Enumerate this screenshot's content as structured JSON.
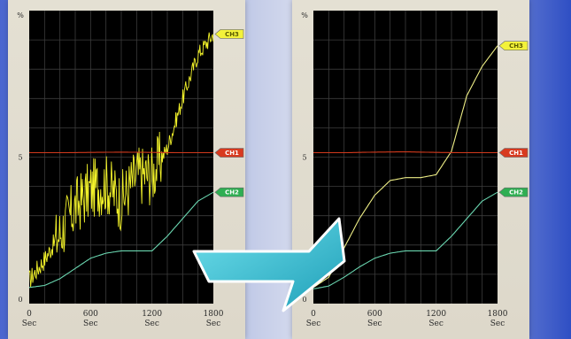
{
  "chart_data": [
    {
      "type": "line",
      "xlim": [
        0,
        1800
      ],
      "ylim": [
        0,
        10
      ],
      "grid": true,
      "x_ticks": [
        {
          "value": 0,
          "line1": "0",
          "line2": "Sec"
        },
        {
          "value": 600,
          "line1": "600",
          "line2": "Sec"
        },
        {
          "value": 1200,
          "line1": "1200",
          "line2": "Sec"
        },
        {
          "value": 1800,
          "line1": "1800",
          "line2": "Sec"
        }
      ],
      "y_ticks": [
        {
          "value": 10,
          "label": "%"
        },
        {
          "value": 5,
          "label": "5"
        },
        {
          "value": 0,
          "label": "0"
        }
      ],
      "series": [
        {
          "name": "CH3",
          "color": "#f2f22a",
          "noisy": true,
          "x": [
            0,
            150,
            300,
            450,
            600,
            750,
            900,
            1050,
            1200,
            1350,
            1500,
            1650,
            1800
          ],
          "y": [
            0.8,
            1.5,
            2.4,
            3.3,
            3.9,
            4.1,
            3.5,
            4.4,
            4.4,
            5.3,
            7.0,
            8.5,
            9.2
          ]
        },
        {
          "name": "CH1",
          "color": "#d23a1c",
          "noisy": false,
          "x": [
            0,
            300,
            600,
            900,
            1200,
            1500,
            1800
          ],
          "y": [
            5.15,
            5.15,
            5.16,
            5.17,
            5.16,
            5.15,
            5.15
          ]
        },
        {
          "name": "CH2",
          "color": "#6ad6b0",
          "noisy": false,
          "x": [
            0,
            150,
            300,
            450,
            600,
            750,
            900,
            1050,
            1200,
            1350,
            1500,
            1650,
            1800
          ],
          "y": [
            0.55,
            0.62,
            0.85,
            1.2,
            1.55,
            1.72,
            1.8,
            1.8,
            1.8,
            2.3,
            2.9,
            3.5,
            3.8
          ]
        }
      ]
    },
    {
      "type": "line",
      "xlim": [
        0,
        1800
      ],
      "ylim": [
        0,
        10
      ],
      "grid": true,
      "x_ticks": [
        {
          "value": 0,
          "line1": "0",
          "line2": "Sec"
        },
        {
          "value": 600,
          "line1": "600",
          "line2": "Sec"
        },
        {
          "value": 1200,
          "line1": "1200",
          "line2": "Sec"
        },
        {
          "value": 1800,
          "line1": "1800",
          "line2": "Sec"
        }
      ],
      "y_ticks": [
        {
          "value": 10,
          "label": "%"
        },
        {
          "value": 5,
          "label": "5"
        },
        {
          "value": 0,
          "label": "0"
        }
      ],
      "series": [
        {
          "name": "CH3",
          "color": "#eeee86",
          "noisy": false,
          "x": [
            0,
            150,
            300,
            450,
            600,
            750,
            900,
            1050,
            1200,
            1350,
            1500,
            1650,
            1800
          ],
          "y": [
            0.55,
            0.9,
            1.9,
            2.9,
            3.7,
            4.2,
            4.3,
            4.3,
            4.4,
            5.2,
            7.1,
            8.1,
            8.8
          ]
        },
        {
          "name": "CH1",
          "color": "#d23a1c",
          "noisy": false,
          "x": [
            0,
            300,
            600,
            900,
            1200,
            1500,
            1800
          ],
          "y": [
            5.15,
            5.15,
            5.17,
            5.18,
            5.16,
            5.15,
            5.15
          ]
        },
        {
          "name": "CH2",
          "color": "#6ad6b0",
          "noisy": false,
          "x": [
            0,
            150,
            300,
            450,
            600,
            750,
            900,
            1050,
            1200,
            1350,
            1500,
            1650,
            1800
          ],
          "y": [
            0.5,
            0.6,
            0.9,
            1.25,
            1.55,
            1.72,
            1.8,
            1.8,
            1.8,
            2.3,
            2.9,
            3.5,
            3.8
          ]
        }
      ]
    }
  ],
  "colors": {
    "background_blue": "#3a57c8",
    "panel": "#e1ddd0",
    "plot_bg": "#000000",
    "grid": "#3c3c3c",
    "arrow": "#35b7cc"
  }
}
